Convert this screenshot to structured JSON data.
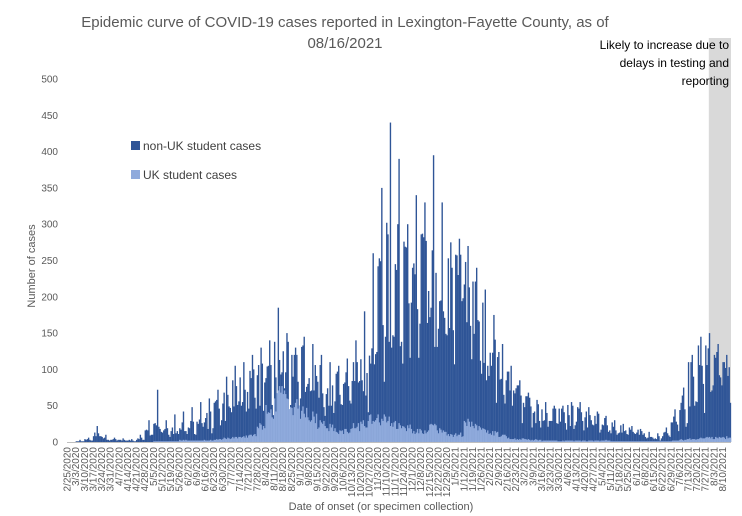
{
  "chart_data": {
    "type": "bar",
    "stacked": true,
    "title_line1": "Epidemic curve of COVID-19 cases reported in Lexington-Fayette County, as of",
    "title_line2": "08/16/2021",
    "xlabel": "Date of onset (or specimen collection)",
    "ylabel": "Number of cases",
    "ylim": [
      0,
      500
    ],
    "yticks": [
      "0",
      "50",
      "100",
      "150",
      "200",
      "250",
      "300",
      "350",
      "400",
      "450",
      "500"
    ],
    "xticks": [
      "2/25/2020",
      "3/3/2020",
      "3/10/2020",
      "3/17/2020",
      "3/24/2020",
      "3/31/2020",
      "4/7/2020",
      "4/14/2020",
      "4/21/2020",
      "4/28/2020",
      "5/5/2020",
      "5/12/2020",
      "5/19/2020",
      "5/26/2020",
      "6/2/2020",
      "6/9/2020",
      "6/16/2020",
      "6/23/2020",
      "6/30/2020",
      "7/7/2020",
      "7/14/2020",
      "7/21/2020",
      "7/28/2020",
      "8/4/2020",
      "8/11/2020",
      "8/18/2020",
      "8/25/2020",
      "9/1/2020",
      "9/8/2020",
      "9/15/2020",
      "9/22/2020",
      "9/29/2020",
      "10/6/2020",
      "10/13/2020",
      "10/20/2020",
      "10/27/2020",
      "11/3/2020",
      "11/10/2020",
      "11/17/2020",
      "11/24/2020",
      "12/1/2020",
      "12/8/2020",
      "12/15/2020",
      "12/22/2020",
      "12/29/2020",
      "1/5/2021",
      "1/12/2021",
      "1/19/2021",
      "1/26/2021",
      "2/2/2021",
      "2/9/2021",
      "2/16/2021",
      "2/23/2021",
      "3/2/2021",
      "3/9/2021",
      "3/16/2021",
      "3/23/2021",
      "3/30/2021",
      "4/6/2021",
      "4/13/2021",
      "4/20/2021",
      "4/27/2021",
      "5/4/2021",
      "5/11/2021",
      "5/18/2021",
      "5/25/2021",
      "6/1/2021",
      "6/8/2021",
      "6/15/2021",
      "6/22/2021",
      "6/29/2021",
      "7/6/2021",
      "7/13/2021",
      "7/20/2021",
      "7/27/2021",
      "8/3/2021",
      "8/10/2021"
    ],
    "series": [
      {
        "name": "non-UK student cases",
        "color": "#2F5597"
      },
      {
        "name": "UK student cases",
        "color": "#8FAADC"
      }
    ],
    "annotation": [
      "Likely to increase due to",
      "delays in testing and",
      "reporting"
    ],
    "shaded_region_start": "7/30/2021",
    "shade_color": "#D9D9D9",
    "weekly_total": [
      0,
      1,
      3,
      10,
      6,
      4,
      3,
      2,
      5,
      12,
      22,
      15,
      18,
      20,
      24,
      28,
      30,
      40,
      50,
      62,
      72,
      78,
      85,
      90,
      105,
      110,
      95,
      100,
      110,
      90,
      80,
      75,
      78,
      85,
      105,
      145,
      205,
      235,
      230,
      200,
      220,
      220,
      230,
      225,
      185,
      200,
      190,
      165,
      140,
      120,
      100,
      80,
      65,
      52,
      40,
      38,
      35,
      35,
      38,
      40,
      35,
      30,
      25,
      20,
      18,
      15,
      12,
      8,
      6,
      10,
      25,
      50,
      80,
      95,
      115,
      110,
      105
    ],
    "weekly_peak": [
      0,
      3,
      6,
      22,
      10,
      6,
      5,
      4,
      10,
      30,
      72,
      30,
      38,
      42,
      48,
      55,
      60,
      72,
      90,
      105,
      110,
      120,
      130,
      140,
      185,
      150,
      130,
      145,
      135,
      120,
      110,
      105,
      115,
      140,
      180,
      260,
      350,
      440,
      390,
      300,
      340,
      330,
      395,
      330,
      275,
      280,
      270,
      240,
      210,
      175,
      135,
      105,
      85,
      68,
      58,
      55,
      50,
      50,
      55,
      55,
      48,
      42,
      36,
      30,
      25,
      22,
      18,
      14,
      12,
      20,
      45,
      75,
      120,
      145,
      150,
      135,
      120
    ],
    "weekly_uk": [
      0,
      0,
      0,
      0,
      0,
      0,
      0,
      0,
      0,
      0,
      1,
      1,
      1,
      2,
      2,
      2,
      2,
      3,
      5,
      6,
      8,
      10,
      20,
      40,
      60,
      60,
      50,
      45,
      35,
      25,
      20,
      15,
      15,
      20,
      25,
      30,
      30,
      28,
      25,
      20,
      15,
      15,
      20,
      15,
      10,
      10,
      25,
      20,
      15,
      12,
      8,
      5,
      4,
      3,
      3,
      2,
      2,
      2,
      2,
      2,
      2,
      2,
      2,
      1,
      1,
      1,
      1,
      1,
      1,
      1,
      2,
      3,
      4,
      5,
      6,
      6,
      6
    ]
  },
  "legend": [
    {
      "label": "non-UK student cases"
    },
    {
      "label": "UK student cases"
    }
  ]
}
